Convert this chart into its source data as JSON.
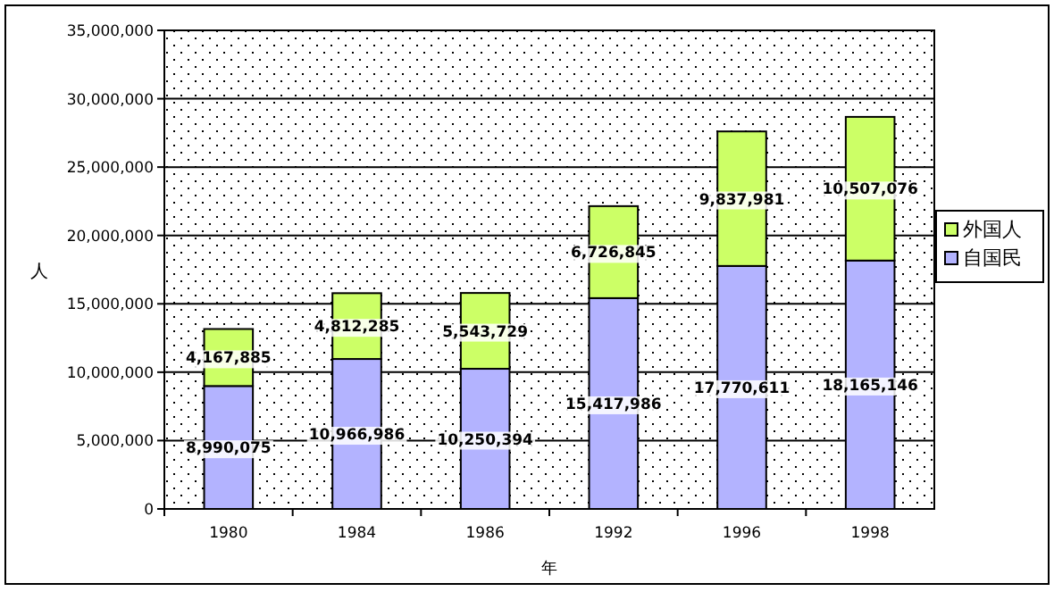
{
  "chart_data": {
    "type": "bar",
    "stacked": true,
    "xlabel": "年",
    "ylabel": "人",
    "categories": [
      "1980",
      "1984",
      "1986",
      "1992",
      "1996",
      "1998"
    ],
    "series": [
      {
        "name": "自国民",
        "color": "#b3b3ff",
        "values": [
          8990075,
          10966986,
          10250394,
          15417986,
          17770611,
          18165146
        ],
        "value_labels": [
          "8,990,075",
          "10,966,986",
          "10,250,394",
          "15,417,986",
          "17,770,611",
          "18,165,146"
        ]
      },
      {
        "name": "外国人",
        "color": "#ccff66",
        "values": [
          4167885,
          4812285,
          5543729,
          6726845,
          9837981,
          10507076
        ],
        "value_labels": [
          "4,167,885",
          "4,812,285",
          "5,543,729",
          "6,726,845",
          "9,837,981",
          "10,507,076"
        ]
      }
    ],
    "ylim": [
      0,
      35000000
    ],
    "yticks": [
      0,
      {
        "value": 5000000,
        "label": "5,000,000"
      },
      {
        "value": 10000000,
        "label": "10,000,000"
      },
      {
        "value": 15000000,
        "label": "15,000,000"
      },
      {
        "value": 20000000,
        "label": "20,000,000"
      },
      {
        "value": 25000000,
        "label": "25,000,000"
      },
      {
        "value": 30000000,
        "label": "30,000,000"
      },
      {
        "value": 35000000,
        "label": "35,000,000"
      }
    ],
    "grid": "y",
    "legend": "right"
  }
}
